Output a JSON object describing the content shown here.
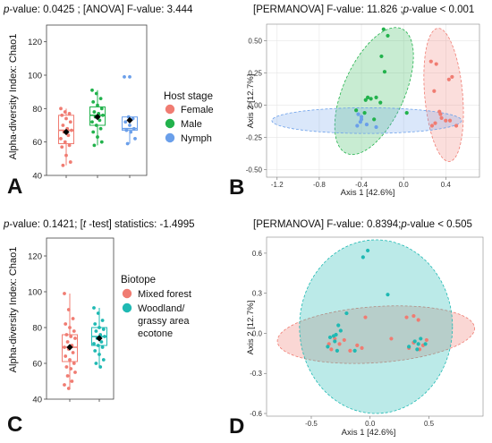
{
  "chart_data": [
    {
      "panel": "A",
      "type": "box",
      "stat_prefix": "-value: 0.0425 ; [ANOVA] F-value: 3.444",
      "ylabel": "Alpha-diversity Index: Chao1",
      "ylim": [
        40,
        130
      ],
      "yticks": [
        40,
        60,
        80,
        100,
        120
      ],
      "legend_title": "Host stage",
      "series": [
        {
          "name": "Female",
          "color": "#F07C72",
          "box": {
            "min": 46,
            "q1": 59,
            "median": 67,
            "q3": 76,
            "max": 80,
            "mean": 66
          },
          "points": [
            80,
            78,
            77,
            76,
            74,
            72,
            70,
            68,
            67,
            66,
            64,
            62,
            60,
            58,
            57,
            52,
            48,
            46
          ]
        },
        {
          "name": "Male",
          "color": "#22B24C",
          "box": {
            "min": 58,
            "q1": 70,
            "median": 76,
            "q3": 81,
            "max": 91,
            "mean": 75
          },
          "points": [
            91,
            89,
            86,
            84,
            82,
            80,
            78,
            77,
            76,
            75,
            73,
            72,
            70,
            68,
            66,
            63,
            60,
            58
          ]
        },
        {
          "name": "Nymph",
          "color": "#6A9FEA",
          "box": {
            "min": 59,
            "q1": 67,
            "median": 68,
            "q3": 75,
            "max": 75,
            "mean": 73
          },
          "outliers": [
            99
          ],
          "points": [
            99,
            75,
            74,
            72,
            70,
            68,
            67,
            66,
            62,
            59
          ]
        }
      ]
    },
    {
      "panel": "B",
      "type": "scatter",
      "stat_label": "[PERMANOVA] F-value: 11.826 ;",
      "stat_suffix": "-value < 0.001",
      "xlabel": "Axis 1 [42.6%]",
      "ylabel": "Axis 2 [12.7%]",
      "xlim": [
        -1.3,
        0.72
      ],
      "ylim": [
        -0.56,
        0.63
      ],
      "xticks": [
        -1.2,
        -0.8,
        -0.4,
        0.0,
        0.4
      ],
      "xtick_labels": [
        "-1.2",
        "-0.8",
        "-0.4",
        "0.0",
        "0.4"
      ],
      "yticks": [
        -0.5,
        -0.25,
        0.0,
        0.25,
        0.5
      ],
      "ytick_labels": [
        "-0.50",
        "-0.25",
        "0.00",
        "0.25",
        "0.50"
      ],
      "grid": true,
      "series": [
        {
          "name": "Female",
          "color": "#F07C72",
          "ellipse": {
            "cx": 0.38,
            "cy": 0.08,
            "rx": 0.18,
            "ry": 0.52,
            "angle": -5
          },
          "points": [
            [
              0.26,
              0.34
            ],
            [
              0.31,
              0.32
            ],
            [
              0.43,
              0.2
            ],
            [
              0.46,
              0.22
            ],
            [
              0.29,
              0.11
            ],
            [
              0.34,
              -0.05
            ],
            [
              0.36,
              -0.1
            ],
            [
              0.4,
              -0.12
            ],
            [
              0.44,
              -0.12
            ],
            [
              0.3,
              -0.14
            ],
            [
              0.27,
              -0.16
            ],
            [
              0.5,
              -0.16
            ],
            [
              0.35,
              -0.07
            ]
          ]
        },
        {
          "name": "Male",
          "color": "#22B24C",
          "ellipse": {
            "cx": -0.28,
            "cy": 0.11,
            "rx": 0.29,
            "ry": 0.53,
            "angle": 24
          },
          "points": [
            [
              -0.19,
              0.59
            ],
            [
              -0.15,
              0.54
            ],
            [
              -0.21,
              0.38
            ],
            [
              -0.18,
              0.26
            ],
            [
              -0.26,
              0.06
            ],
            [
              -0.31,
              0.05
            ],
            [
              -0.34,
              0.06
            ],
            [
              -0.36,
              0.04
            ],
            [
              -0.22,
              0.02
            ],
            [
              -0.37,
              -0.06
            ],
            [
              -0.28,
              -0.11
            ],
            [
              0.03,
              -0.06
            ],
            [
              -0.45,
              -0.04
            ]
          ]
        },
        {
          "name": "Nymph",
          "color": "#6A9FEA",
          "ellipse": {
            "cx": -0.35,
            "cy": -0.12,
            "rx": 0.9,
            "ry": 0.1,
            "angle": 0
          },
          "points": [
            [
              -0.43,
              -0.07
            ],
            [
              -0.4,
              -0.09
            ],
            [
              -0.41,
              -0.13
            ],
            [
              -0.44,
              -0.16
            ],
            [
              -0.35,
              -0.15
            ],
            [
              -0.26,
              -0.17
            ],
            [
              -0.4,
              -0.11
            ]
          ]
        }
      ]
    },
    {
      "panel": "C",
      "type": "box",
      "stat_prefix": "-value: 0.1421; [",
      "stat_t": "t",
      "stat_suffix": " -test] statistics: -1.4995",
      "ylabel": "Alpha-diversity Index: Chao1",
      "ylim": [
        40,
        130
      ],
      "yticks": [
        40,
        60,
        80,
        100,
        120
      ],
      "legend_title": "Biotope",
      "series": [
        {
          "name": "Mixed forest",
          "name_lines": [
            "Mixed forest"
          ],
          "color": "#F07C72",
          "box": {
            "min": 46,
            "q1": 61,
            "median": 69,
            "q3": 76,
            "max": 99,
            "mean": 69
          },
          "points": [
            99,
            90,
            85,
            82,
            80,
            78,
            76,
            75,
            74,
            72,
            70,
            69,
            68,
            66,
            64,
            62,
            60,
            58,
            57,
            55,
            53,
            50,
            48,
            46
          ]
        },
        {
          "name": "Woodland/ grassy area ecotone",
          "name_lines": [
            "Woodland/",
            "grassy area",
            "ecotone"
          ],
          "color": "#1FB9B3",
          "box": {
            "min": 58,
            "q1": 70,
            "median": 75,
            "q3": 80,
            "max": 91,
            "mean": 74
          },
          "points": [
            91,
            88,
            84,
            82,
            80,
            79,
            78,
            76,
            75,
            74,
            72,
            71,
            70,
            69,
            67,
            65,
            62,
            60,
            58
          ]
        }
      ]
    },
    {
      "panel": "D",
      "type": "scatter",
      "stat_label": "[PERMANOVA] F-value: 0.8394;",
      "stat_suffix": "-value < 0.505",
      "xlabel": "Axis 1 [42.6%]",
      "ylabel": "Axis 2 [12.7%]",
      "xlim": [
        -0.88,
        0.96
      ],
      "ylim": [
        -0.62,
        0.72
      ],
      "xticks": [
        -0.5,
        0.0,
        0.5
      ],
      "xtick_labels": [
        "-0.5",
        "0.0",
        "0.5"
      ],
      "yticks": [
        -0.6,
        -0.3,
        0.0,
        0.3,
        0.6
      ],
      "ytick_labels": [
        "-0.6",
        "-0.3",
        "0.0",
        "0.3",
        "0.6"
      ],
      "grid": false,
      "series": [
        {
          "name": "Mixed forest",
          "color": "#F07C72",
          "ellipse": {
            "cx": 0.05,
            "cy": -0.01,
            "rx": 0.84,
            "ry": 0.21,
            "angle": -4
          },
          "points": [
            [
              -0.04,
              0.12
            ],
            [
              0.31,
              0.12
            ],
            [
              0.37,
              0.13
            ],
            [
              0.41,
              0.1
            ],
            [
              -0.3,
              -0.04
            ],
            [
              -0.22,
              -0.05
            ],
            [
              -0.26,
              -0.08
            ],
            [
              -0.35,
              -0.08
            ],
            [
              -0.11,
              -0.09
            ],
            [
              -0.07,
              -0.11
            ],
            [
              0.18,
              -0.04
            ],
            [
              0.37,
              -0.07
            ],
            [
              0.45,
              -0.09
            ],
            [
              0.42,
              -0.12
            ],
            [
              0.33,
              -0.11
            ],
            [
              -0.33,
              -0.12
            ],
            [
              -0.17,
              -0.13
            ],
            [
              0.48,
              -0.05
            ]
          ]
        },
        {
          "name": "Woodland/ grassy area ecotone",
          "color": "#1FB9B3",
          "ellipse": {
            "cx": 0.05,
            "cy": 0.05,
            "rx": 0.65,
            "ry": 0.65,
            "angle": 0
          },
          "points": [
            [
              -0.02,
              0.62
            ],
            [
              -0.06,
              0.57
            ],
            [
              0.15,
              0.29
            ],
            [
              -0.2,
              0.15
            ],
            [
              -0.27,
              0.06
            ],
            [
              -0.25,
              0.02
            ],
            [
              -0.29,
              -0.01
            ],
            [
              -0.31,
              -0.02
            ],
            [
              -0.34,
              -0.03
            ],
            [
              -0.3,
              -0.06
            ],
            [
              -0.36,
              -0.1
            ],
            [
              -0.28,
              -0.13
            ],
            [
              0.38,
              -0.06
            ],
            [
              0.41,
              -0.08
            ],
            [
              0.47,
              -0.08
            ],
            [
              0.4,
              -0.12
            ],
            [
              0.33,
              -0.1
            ],
            [
              -0.13,
              -0.13
            ],
            [
              0.43,
              -0.04
            ]
          ]
        }
      ]
    }
  ]
}
